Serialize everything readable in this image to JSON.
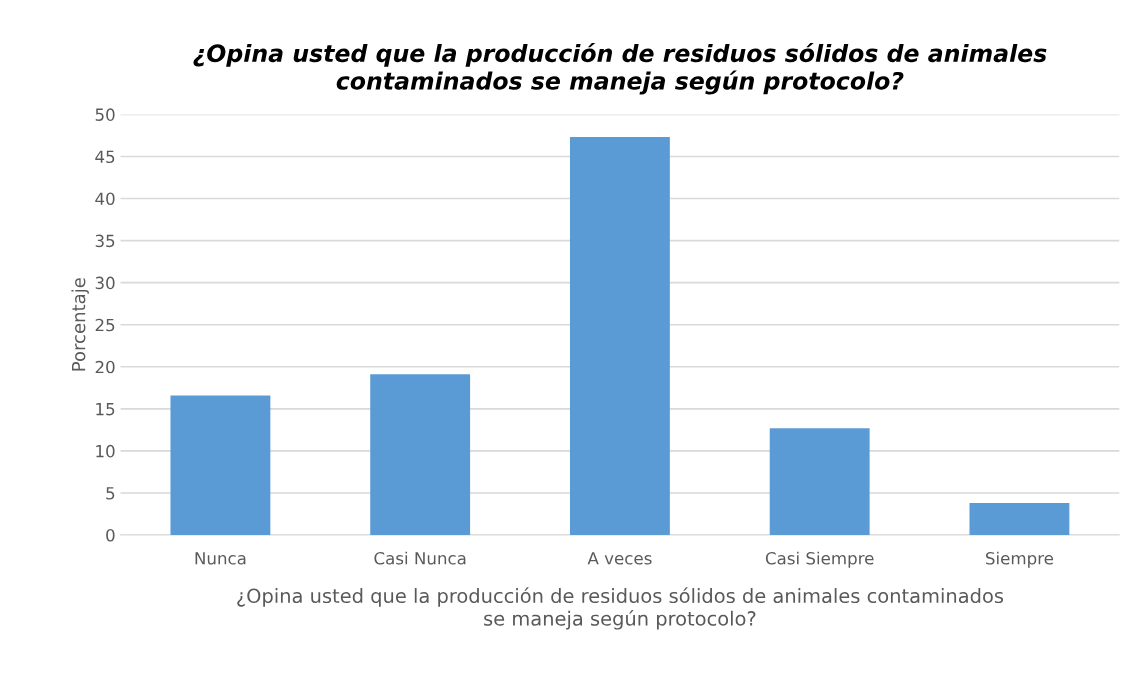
{
  "chart_data": {
    "type": "bar",
    "title": "¿Opina usted que la producción de residuos sólidos de animales\ncontaminados se maneja según protocolo?",
    "xlabel": "¿Opina usted que la producción de residuos sólidos de animales contaminados\nse maneja según protocolo?",
    "ylabel": "Porcentaje",
    "categories": [
      "Nunca",
      "Casi Nunca",
      "A veces",
      "Casi Siempre",
      "Siempre"
    ],
    "values": [
      16.6,
      19.1,
      47.3,
      12.7,
      3.8
    ],
    "color": "#5b9bd5",
    "ylim": [
      0,
      50
    ],
    "yticks": [
      0,
      5,
      10,
      15,
      20,
      25,
      30,
      35,
      40,
      45,
      50
    ],
    "grid": "y"
  }
}
